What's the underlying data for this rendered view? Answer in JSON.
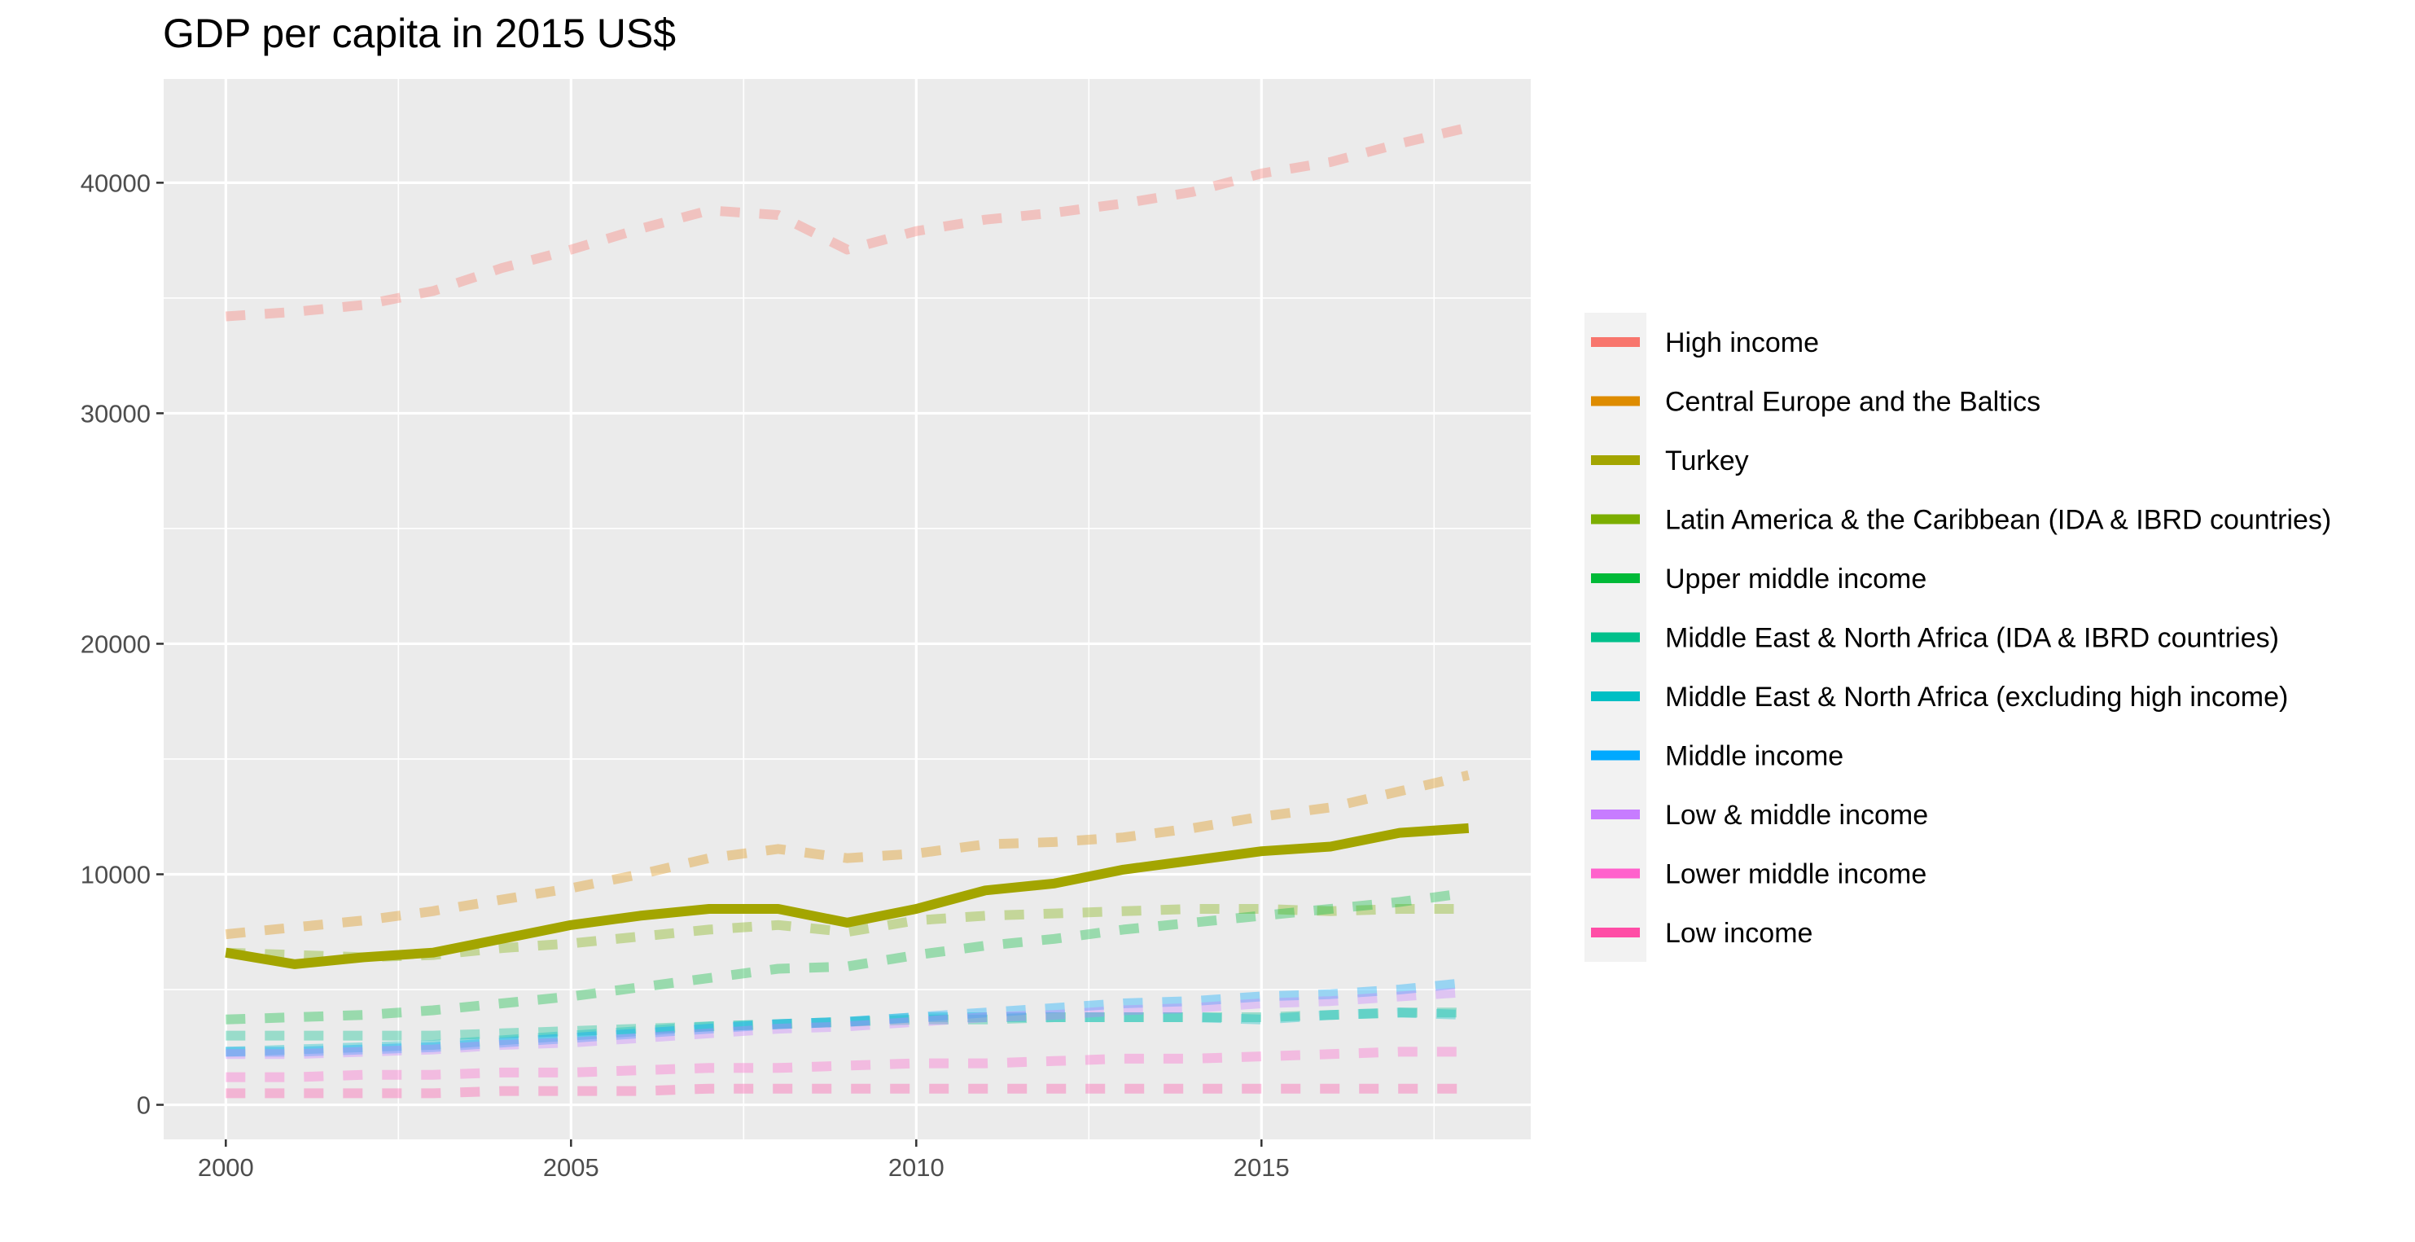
{
  "chart_data": {
    "type": "line",
    "title": "GDP per capita in 2015 US$",
    "xlabel": "",
    "ylabel": "",
    "x": [
      2000,
      2001,
      2002,
      2003,
      2004,
      2005,
      2006,
      2007,
      2008,
      2009,
      2010,
      2011,
      2012,
      2013,
      2014,
      2015,
      2016,
      2017,
      2018
    ],
    "xlim": [
      1999.1,
      2018.9
    ],
    "ylim": [
      -1500,
      44500
    ],
    "x_ticks": [
      2000,
      2005,
      2010,
      2015
    ],
    "y_ticks": [
      0,
      10000,
      20000,
      30000,
      40000
    ],
    "grid": true,
    "legend_position": "right",
    "series": [
      {
        "name": "High income",
        "color": "#F8766D",
        "style": "dashed",
        "highlight": false,
        "values": [
          34200,
          34400,
          34700,
          35300,
          36300,
          37100,
          38000,
          38800,
          38600,
          37100,
          37900,
          38400,
          38700,
          39100,
          39600,
          40400,
          40900,
          41700,
          42400
        ]
      },
      {
        "name": "Central Europe and the Baltics",
        "color": "#DE8C00",
        "style": "dashed",
        "highlight": false,
        "values": [
          7400,
          7700,
          8000,
          8400,
          8900,
          9400,
          10000,
          10700,
          11100,
          10700,
          10900,
          11300,
          11400,
          11600,
          12000,
          12500,
          12900,
          13600,
          14300
        ]
      },
      {
        "name": "Turkey",
        "color": "#A3A500",
        "style": "solid",
        "highlight": true,
        "values": [
          6600,
          6100,
          6400,
          6600,
          7200,
          7800,
          8200,
          8500,
          8500,
          7900,
          8500,
          9300,
          9600,
          10200,
          10600,
          11000,
          11200,
          11800,
          12000
        ]
      },
      {
        "name": "Latin America & the Caribbean (IDA & IBRD countries)",
        "color": "#7CAE00",
        "style": "dashed",
        "highlight": false,
        "values": [
          6600,
          6500,
          6400,
          6500,
          6800,
          7000,
          7300,
          7600,
          7800,
          7500,
          8000,
          8200,
          8300,
          8400,
          8500,
          8500,
          8400,
          8500,
          8500
        ]
      },
      {
        "name": "Upper middle income",
        "color": "#00BA38",
        "style": "dashed",
        "highlight": false,
        "values": [
          3700,
          3800,
          3900,
          4100,
          4400,
          4700,
          5100,
          5500,
          5900,
          6000,
          6500,
          6900,
          7200,
          7600,
          7900,
          8200,
          8500,
          8800,
          9200
        ]
      },
      {
        "name": "Middle East & North Africa (IDA & IBRD countries)",
        "color": "#00C08B",
        "style": "dashed",
        "highlight": false,
        "values": [
          3000,
          3000,
          3000,
          3000,
          3100,
          3200,
          3300,
          3400,
          3500,
          3600,
          3700,
          3700,
          3800,
          3800,
          3800,
          3800,
          3900,
          4000,
          4000
        ]
      },
      {
        "name": "Middle East & North Africa (excluding high income)",
        "color": "#00BFC4",
        "style": "dashed",
        "highlight": false,
        "values": [
          2300,
          2400,
          2500,
          2600,
          2800,
          3000,
          3200,
          3400,
          3500,
          3600,
          3800,
          3800,
          3800,
          3800,
          3800,
          3700,
          3900,
          4000,
          3900
        ]
      },
      {
        "name": "Middle income",
        "color": "#00A9FF",
        "style": "dashed",
        "highlight": false,
        "values": [
          2300,
          2300,
          2400,
          2500,
          2700,
          2900,
          3100,
          3300,
          3500,
          3600,
          3800,
          4000,
          4200,
          4400,
          4500,
          4700,
          4800,
          5000,
          5300
        ]
      },
      {
        "name": "Low & middle income",
        "color": "#C77CFF",
        "style": "dashed",
        "highlight": false,
        "values": [
          2200,
          2200,
          2300,
          2400,
          2600,
          2700,
          2900,
          3100,
          3300,
          3400,
          3600,
          3800,
          3900,
          4100,
          4200,
          4400,
          4500,
          4700,
          4900
        ]
      },
      {
        "name": "Lower middle income",
        "color": "#FF61CC",
        "style": "dashed",
        "highlight": false,
        "values": [
          1200,
          1200,
          1300,
          1300,
          1400,
          1400,
          1500,
          1600,
          1600,
          1700,
          1800,
          1800,
          1900,
          2000,
          2000,
          2100,
          2200,
          2300,
          2300
        ]
      },
      {
        "name": "Low income",
        "color": "#FF4DA6",
        "style": "dashed",
        "highlight": false,
        "values": [
          500,
          500,
          500,
          500,
          600,
          600,
          600,
          700,
          700,
          700,
          700,
          700,
          700,
          700,
          700,
          700,
          700,
          700,
          700
        ]
      }
    ]
  }
}
